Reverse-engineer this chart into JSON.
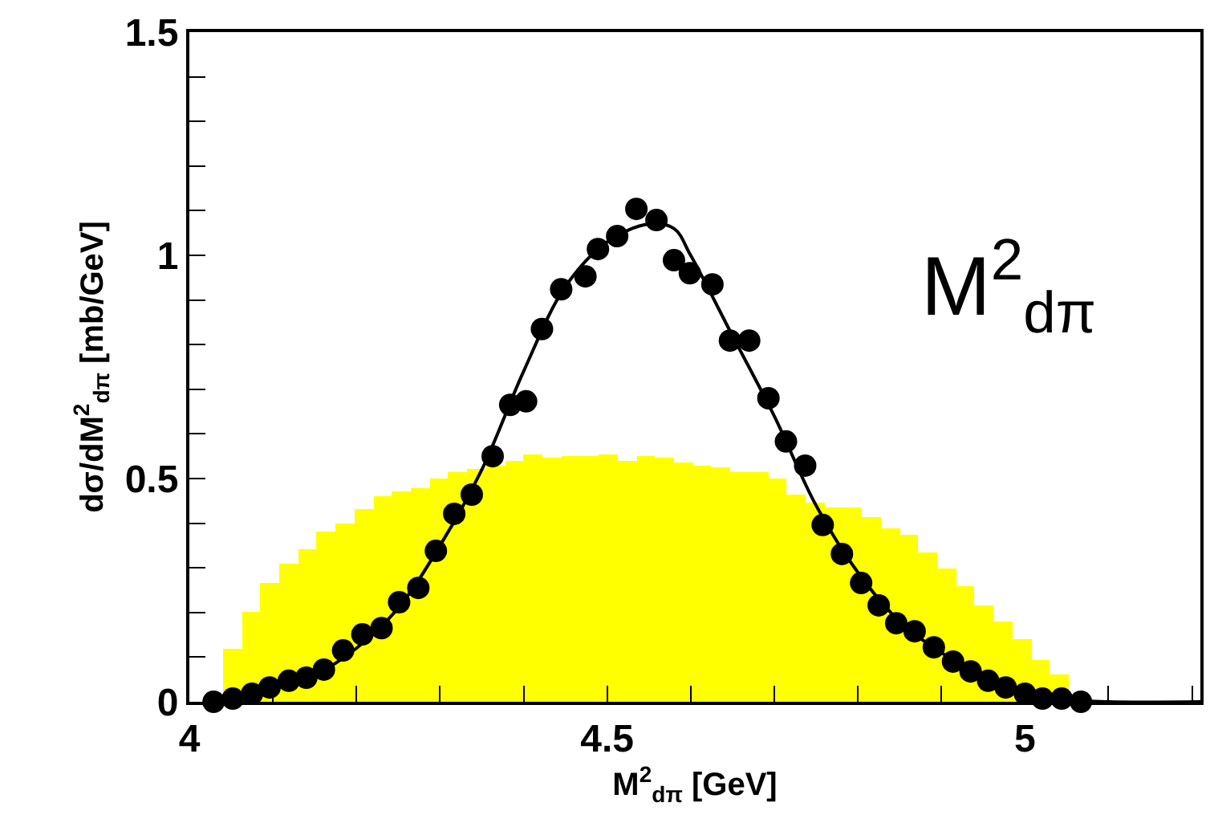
{
  "chart_data": {
    "type": "histogram",
    "xlabel": "M$^{2}$$_{dπ}$ [GeV]",
    "ylabel": "dσ/dM$^{2}$$_{dπ}$ [mb/GeV]",
    "annotations": [
      "M$^{2}$$_{dπ}$"
    ],
    "xlim": [
      4,
      5.21
    ],
    "xticks": [
      4,
      {
        "value": 4.1,
        "label": null
      },
      {
        "value": 4.2,
        "label": null
      },
      {
        "value": 4.3,
        "label": null
      },
      {
        "value": 4.4,
        "label": null
      },
      4.5,
      {
        "value": 4.6,
        "label": null
      },
      {
        "value": 4.7,
        "label": null
      },
      {
        "value": 4.8,
        "label": null
      },
      {
        "value": 4.9,
        "label": null
      },
      5,
      {
        "value": 5.1,
        "label": null
      },
      {
        "value": 5.2,
        "label": null
      }
    ],
    "ylim": [
      0,
      1.5
    ],
    "yticks": [
      0,
      {
        "value": 0.1,
        "label": null
      },
      {
        "value": 0.2,
        "label": null
      },
      {
        "value": 0.3,
        "label": null
      },
      {
        "value": 0.4,
        "label": null
      },
      0.5,
      {
        "value": 0.6,
        "label": null
      },
      {
        "value": 0.7,
        "label": null
      },
      {
        "value": 0.8,
        "label": null
      },
      {
        "value": 0.9,
        "label": null
      },
      1,
      {
        "value": 1.1,
        "label": null
      },
      {
        "value": 1.2,
        "label": null
      },
      {
        "value": 1.3,
        "label": null
      },
      {
        "value": 1.4,
        "label": null
      },
      1.5
    ],
    "grid": false,
    "series": [
      {
        "color": "#ffff00",
        "bins": [
          4.04,
          4.0625,
          4.085,
          4.1075,
          4.13,
          4.1525,
          4.175,
          4.1975,
          4.22,
          4.2425,
          4.265,
          4.2875,
          4.31,
          4.3325,
          4.355,
          4.3775,
          4.4,
          4.4225,
          4.445,
          4.4675,
          4.49,
          4.5125,
          4.535,
          4.5575,
          4.58,
          4.6025,
          4.625,
          4.6475,
          4.67,
          4.6925,
          4.715,
          4.7375,
          4.76,
          4.7825,
          4.805,
          4.8275,
          4.85,
          4.8725,
          4.895,
          4.9175,
          4.94,
          4.9625,
          4.985,
          5.0075,
          5.03,
          5.0525
        ],
        "values": [
          0.12,
          0.2,
          0.265,
          0.31,
          0.34,
          0.38,
          0.4,
          0.43,
          0.46,
          0.47,
          0.48,
          0.5,
          0.515,
          0.52,
          0.53,
          0.54,
          0.555,
          0.545,
          0.55,
          0.55,
          0.555,
          0.54,
          0.55,
          0.545,
          0.535,
          0.53,
          0.525,
          0.515,
          0.515,
          0.5,
          0.465,
          0.445,
          0.435,
          0.435,
          0.415,
          0.39,
          0.375,
          0.335,
          0.3,
          0.26,
          0.215,
          0.18,
          0.14,
          0.095,
          0.06
        ]
      },
      {
        "type": "line",
        "color": "#000000",
        "marker": "none",
        "line_style": "solid",
        "x": [
          4.03,
          4.1,
          4.15,
          4.2,
          4.25,
          4.3,
          4.35,
          4.4,
          4.45,
          4.5,
          4.55,
          4.58,
          4.6,
          4.65,
          4.7,
          4.75,
          4.8,
          4.85,
          4.9,
          4.95,
          5.0,
          5.05,
          5.1,
          5.21
        ],
        "values": [
          0,
          0.03,
          0.06,
          0.12,
          0.21,
          0.35,
          0.52,
          0.74,
          0.93,
          1.03,
          1.07,
          1.06,
          1.0,
          0.82,
          0.64,
          0.44,
          0.29,
          0.18,
          0.11,
          0.06,
          0.025,
          0.005,
          0,
          0
        ]
      },
      {
        "type": "scatter",
        "color": "#000000",
        "marker": "circle",
        "x": [
          4.029,
          4.052,
          4.075,
          4.096,
          4.119,
          4.14,
          4.161,
          4.184,
          4.207,
          4.23,
          4.251,
          4.274,
          4.295,
          4.317,
          4.338,
          4.363,
          4.384,
          4.403,
          4.422,
          4.445,
          4.474,
          4.489,
          4.512,
          4.535,
          4.559,
          4.58,
          4.599,
          4.626,
          4.647,
          4.67,
          4.693,
          4.714,
          4.737,
          4.758,
          4.781,
          4.804,
          4.825,
          4.846,
          4.868,
          4.891,
          4.914,
          4.935,
          4.956,
          4.977,
          5.0,
          5.021,
          5.044,
          5.067
        ],
        "values": [
          0,
          0.007,
          0.018,
          0.032,
          0.047,
          0.054,
          0.072,
          0.115,
          0.151,
          0.165,
          0.223,
          0.255,
          0.338,
          0.421,
          0.464,
          0.55,
          0.665,
          0.673,
          0.835,
          0.924,
          0.953,
          1.014,
          1.043,
          1.104,
          1.079,
          0.989,
          0.96,
          0.935,
          0.809,
          0.809,
          0.68,
          0.583,
          0.529,
          0.396,
          0.331,
          0.266,
          0.216,
          0.176,
          0.158,
          0.122,
          0.09,
          0.068,
          0.047,
          0.032,
          0.018,
          0.007,
          0.007,
          0
        ]
      }
    ]
  }
}
